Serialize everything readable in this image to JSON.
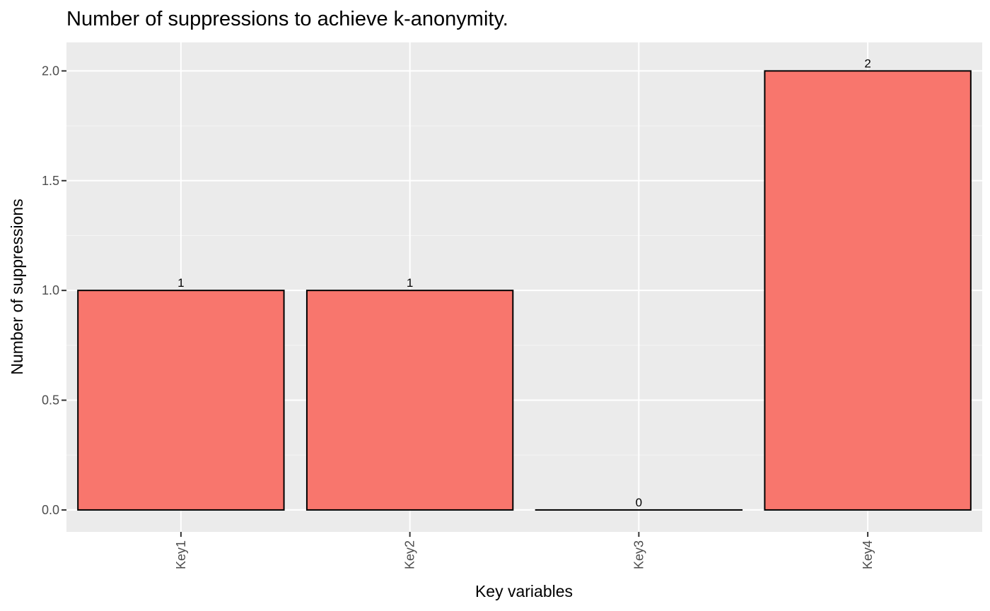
{
  "chart_data": {
    "type": "bar",
    "title": "Number of suppressions to achieve k-anonymity.",
    "xlabel": "Key variables",
    "ylabel": "Number of suppressions",
    "categories": [
      "Key1",
      "Key2",
      "Key3",
      "Key4"
    ],
    "values": [
      1,
      1,
      0,
      2
    ],
    "data_labels": [
      "1",
      "1",
      "0",
      "2"
    ],
    "ylim": [
      -0.1,
      2.13
    ],
    "yticks": [
      0.0,
      0.5,
      1.0,
      1.5,
      2.0
    ],
    "ytick_labels": [
      "0.0",
      "0.5",
      "1.0",
      "1.5",
      "2.0"
    ],
    "x_tick_label_rotation": "vertical",
    "grid": true,
    "legend": "none",
    "colors": {
      "bar_fill": "#F8766D",
      "bar_stroke": "#000000",
      "panel_background": "#EBEBEB",
      "grid_major": "#FFFFFF",
      "grid_minor": "#F5F5F5",
      "tick_mark": "#333333",
      "tick_label": "#4D4D4D"
    }
  }
}
